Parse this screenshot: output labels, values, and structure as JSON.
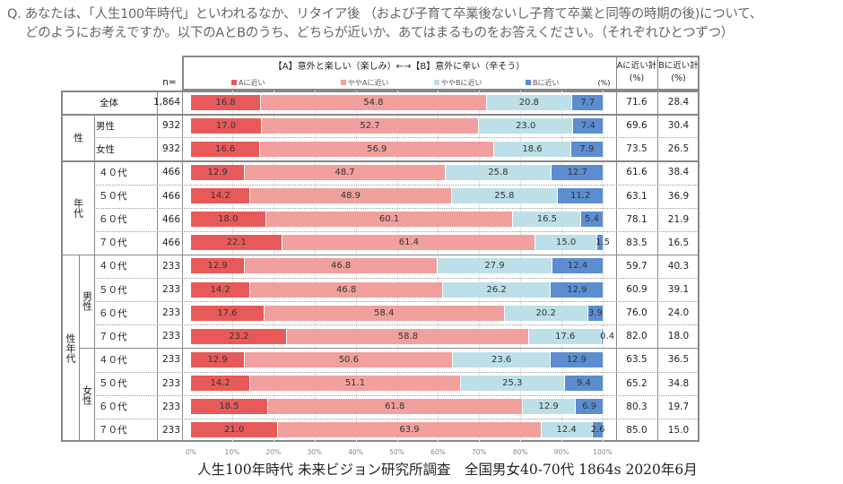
{
  "question": {
    "line1": "Q. あなたは、「人生100年時代」といわれるなか、リタイア後 （および子育て卒業後ないし子育て卒業と同等の時期の後)について、",
    "line2": "どのようにお考えですか。以下のAとBのうち、どちらが近いか、あてはまるものをお答えください。（それぞれひとつずつ）"
  },
  "header": {
    "n_label": "n=",
    "chart_title": "【A】意外と楽しい（楽しみ）←→【B】意外に辛い（辛そう）",
    "unit": "(%)",
    "a_total": "Aに近い計\n(%)",
    "b_total": "Bに近い計\n(%)"
  },
  "colors": {
    "A": "#e85a5a",
    "slightly_A": "#f1a09d",
    "slightly_B": "#bddfe7",
    "B": "#5b8dd0"
  },
  "footer": "人生100年時代 未来ビジョン研究所調査　全国男女40-70代 1864s  2020年6月",
  "chart_data": {
    "type": "bar",
    "stacked": true,
    "orientation": "horizontal",
    "xlim": [
      0,
      100
    ],
    "x_ticks": [
      "0%",
      "10%",
      "20%",
      "30%",
      "40%",
      "50%",
      "60%",
      "70%",
      "80%",
      "90%",
      "100%"
    ],
    "legend": [
      "Aに近い",
      "ややAに近い",
      "ややBに近い",
      "Bに近い"
    ],
    "legend_position": "top",
    "groups": [
      {
        "label": "",
        "rows": [
          0
        ]
      },
      {
        "label": "性",
        "rows": [
          1,
          2
        ]
      },
      {
        "label": "年代",
        "rows": [
          3,
          4,
          5,
          6
        ]
      },
      {
        "label": "性年代",
        "sub": [
          {
            "label": "男性",
            "rows": [
              7,
              8,
              9,
              10
            ]
          },
          {
            "label": "女性",
            "rows": [
              11,
              12,
              13,
              14
            ]
          }
        ]
      }
    ],
    "rows": [
      {
        "label": "全体",
        "n": "1,864",
        "values": [
          16.8,
          54.8,
          20.8,
          7.7
        ],
        "a_total": "71.6",
        "b_total": "28.4"
      },
      {
        "label": "男性",
        "n": "932",
        "values": [
          17.0,
          52.7,
          23.0,
          7.4
        ],
        "a_total": "69.6",
        "b_total": "30.4"
      },
      {
        "label": "女性",
        "n": "932",
        "values": [
          16.6,
          56.9,
          18.6,
          7.9
        ],
        "a_total": "73.5",
        "b_total": "26.5"
      },
      {
        "label": "４０代",
        "n": "466",
        "values": [
          12.9,
          48.7,
          25.8,
          12.7
        ],
        "a_total": "61.6",
        "b_total": "38.4"
      },
      {
        "label": "５０代",
        "n": "466",
        "values": [
          14.2,
          48.9,
          25.8,
          11.2
        ],
        "a_total": "63.1",
        "b_total": "36.9"
      },
      {
        "label": "６０代",
        "n": "466",
        "values": [
          18.0,
          60.1,
          16.5,
          5.4
        ],
        "a_total": "78.1",
        "b_total": "21.9"
      },
      {
        "label": "７０代",
        "n": "466",
        "values": [
          22.1,
          61.4,
          15.0,
          1.5
        ],
        "a_total": "83.5",
        "b_total": "16.5"
      },
      {
        "label": "４０代",
        "n": "233",
        "values": [
          12.9,
          46.8,
          27.9,
          12.4
        ],
        "a_total": "59.7",
        "b_total": "40.3"
      },
      {
        "label": "５０代",
        "n": "233",
        "values": [
          14.2,
          46.8,
          26.2,
          12.9
        ],
        "a_total": "60.9",
        "b_total": "39.1"
      },
      {
        "label": "６０代",
        "n": "233",
        "values": [
          17.6,
          58.4,
          20.2,
          3.9
        ],
        "a_total": "76.0",
        "b_total": "24.0"
      },
      {
        "label": "７０代",
        "n": "233",
        "values": [
          23.2,
          58.8,
          17.6,
          0.4
        ],
        "a_total": "82.0",
        "b_total": "18.0"
      },
      {
        "label": "４０代",
        "n": "233",
        "values": [
          12.9,
          50.6,
          23.6,
          12.9
        ],
        "a_total": "63.5",
        "b_total": "36.5"
      },
      {
        "label": "５０代",
        "n": "233",
        "values": [
          14.2,
          51.1,
          25.3,
          9.4
        ],
        "a_total": "65.2",
        "b_total": "34.8"
      },
      {
        "label": "６０代",
        "n": "233",
        "values": [
          18.5,
          61.8,
          12.9,
          6.9
        ],
        "a_total": "80.3",
        "b_total": "19.7"
      },
      {
        "label": "７０代",
        "n": "233",
        "values": [
          21.0,
          63.9,
          12.4,
          2.6
        ],
        "a_total": "85.0",
        "b_total": "15.0"
      }
    ]
  }
}
